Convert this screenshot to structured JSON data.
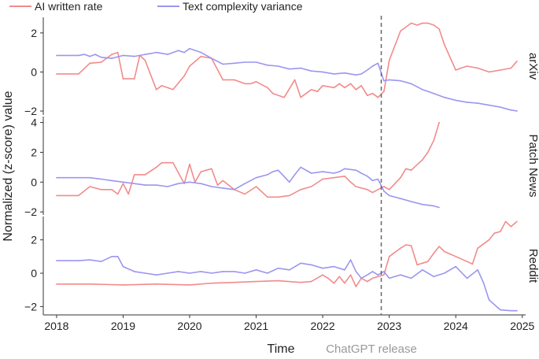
{
  "chart_data": {
    "type": "line",
    "xlabel": "Time",
    "ylabel": "Normalized (z-score) value",
    "xlim": [
      2017.8,
      2025.05
    ],
    "x_ticks": [
      2018,
      2019,
      2020,
      2021,
      2022,
      2023,
      2024,
      2025
    ],
    "x_tick_labels": [
      "2018",
      "2019",
      "2020",
      "2021",
      "2022",
      "2023",
      "2024",
      "2025"
    ],
    "legend": {
      "placement": "top-left",
      "entries": [
        {
          "label": "AI written rate",
          "color": "#f28b8b"
        },
        {
          "label": "Text complexity variance",
          "color": "#9b96f0"
        }
      ]
    },
    "annotation": {
      "text": "ChatGPT release",
      "x": 2022.88,
      "style": "dashed-vertical-line"
    },
    "panels": [
      {
        "label": "arXiv",
        "ylim": [
          -2.2,
          2.8
        ],
        "y_ticks": [
          -2,
          0,
          2
        ],
        "y_tick_labels": [
          "−2",
          "0",
          "2"
        ],
        "series": [
          {
            "key": "ai",
            "color": "#f28b8b",
            "x": [
              2018.0,
              2018.33,
              2018.5,
              2018.67,
              2018.83,
              2018.92,
              2019.0,
              2019.17,
              2019.25,
              2019.33,
              2019.5,
              2019.58,
              2019.75,
              2019.92,
              2020.0,
              2020.17,
              2020.33,
              2020.5,
              2020.67,
              2020.83,
              2020.92,
              2021.0,
              2021.17,
              2021.25,
              2021.42,
              2021.58,
              2021.67,
              2021.75,
              2021.83,
              2021.92,
              2022.0,
              2022.17,
              2022.25,
              2022.33,
              2022.42,
              2022.5,
              2022.58,
              2022.67,
              2022.75,
              2022.83,
              2022.92,
              2023.0,
              2023.17,
              2023.33,
              2023.42,
              2023.5,
              2023.58,
              2023.67,
              2023.75,
              2023.83,
              2024.0,
              2024.08,
              2024.17,
              2024.33,
              2024.5,
              2024.67,
              2024.83,
              2024.92
            ],
            "y": [
              -0.1,
              -0.1,
              0.45,
              0.5,
              0.9,
              1.0,
              -0.35,
              -0.35,
              0.85,
              0.6,
              -0.9,
              -0.7,
              -0.9,
              -0.2,
              0.3,
              0.8,
              0.7,
              -0.4,
              -0.4,
              -0.6,
              -0.6,
              -0.5,
              -0.8,
              -1.1,
              -1.3,
              -0.4,
              -1.3,
              -1.1,
              -0.9,
              -1.0,
              -0.7,
              -0.8,
              -0.6,
              -0.8,
              -0.6,
              -0.9,
              -0.7,
              -1.2,
              -1.1,
              -1.3,
              -1.0,
              0.6,
              2.1,
              2.5,
              2.4,
              2.5,
              2.5,
              2.4,
              2.2,
              1.4,
              0.1,
              0.2,
              0.3,
              0.2,
              0.0,
              0.1,
              0.2,
              0.55
            ]
          },
          {
            "key": "tcv",
            "color": "#9b96f0",
            "x": [
              2018.0,
              2018.33,
              2018.42,
              2018.5,
              2018.58,
              2018.67,
              2018.83,
              2019.0,
              2019.17,
              2019.33,
              2019.42,
              2019.5,
              2019.67,
              2019.83,
              2019.92,
              2020.0,
              2020.17,
              2020.33,
              2020.5,
              2020.67,
              2020.83,
              2021.0,
              2021.17,
              2021.33,
              2021.5,
              2021.67,
              2021.83,
              2022.0,
              2022.17,
              2022.33,
              2022.5,
              2022.58,
              2022.67,
              2022.75,
              2022.83,
              2022.92,
              2023.0,
              2023.17,
              2023.33,
              2023.5,
              2023.67,
              2023.83,
              2024.0,
              2024.17,
              2024.33,
              2024.5,
              2024.67,
              2024.83,
              2024.92
            ],
            "y": [
              0.85,
              0.85,
              0.9,
              0.8,
              0.9,
              0.75,
              0.7,
              0.85,
              0.8,
              0.9,
              0.95,
              1.0,
              0.9,
              1.1,
              1.0,
              1.2,
              1.0,
              0.7,
              0.4,
              0.45,
              0.5,
              0.5,
              0.35,
              0.3,
              0.15,
              0.2,
              0.05,
              0.0,
              -0.1,
              -0.05,
              -0.15,
              -0.1,
              0.1,
              0.3,
              0.45,
              -0.45,
              -0.4,
              -0.45,
              -0.6,
              -0.9,
              -1.1,
              -1.3,
              -1.45,
              -1.55,
              -1.6,
              -1.7,
              -1.8,
              -1.95,
              -2.0
            ]
          }
        ]
      },
      {
        "label": "Patch News",
        "ylim": [
          -2.2,
          4.4
        ],
        "y_ticks": [
          -2,
          0,
          2,
          4
        ],
        "y_tick_labels": [
          "−2",
          "0",
          "2",
          "4"
        ],
        "series": [
          {
            "key": "ai",
            "color": "#f28b8b",
            "x": [
              2018.0,
              2018.33,
              2018.5,
              2018.67,
              2018.83,
              2018.92,
              2019.0,
              2019.08,
              2019.17,
              2019.33,
              2019.5,
              2019.58,
              2019.67,
              2019.75,
              2019.92,
              2020.0,
              2020.08,
              2020.17,
              2020.33,
              2020.42,
              2020.5,
              2020.67,
              2020.83,
              2021.0,
              2021.17,
              2021.33,
              2021.5,
              2021.67,
              2021.83,
              2022.0,
              2022.17,
              2022.33,
              2022.42,
              2022.5,
              2022.67,
              2022.75,
              2022.83,
              2022.92,
              2023.0,
              2023.17,
              2023.25,
              2023.33,
              2023.5,
              2023.58,
              2023.67,
              2023.75
            ],
            "y": [
              -0.9,
              -0.9,
              -0.3,
              -0.5,
              -0.5,
              -0.8,
              -0.1,
              -0.8,
              0.5,
              0.5,
              1.0,
              1.3,
              1.3,
              1.3,
              -0.1,
              1.2,
              0.0,
              0.7,
              0.9,
              -0.2,
              0.1,
              -0.5,
              -0.8,
              -0.3,
              -1.0,
              -1.0,
              -0.9,
              -0.5,
              -0.3,
              0.2,
              0.3,
              0.4,
              0.0,
              -0.3,
              -0.5,
              -0.7,
              -0.5,
              -0.3,
              -0.5,
              0.3,
              0.9,
              0.8,
              1.5,
              2.0,
              2.8,
              4.0
            ]
          },
          {
            "key": "tcv",
            "color": "#9b96f0",
            "x": [
              2018.0,
              2018.33,
              2018.5,
              2018.67,
              2018.83,
              2019.0,
              2019.17,
              2019.33,
              2019.5,
              2019.67,
              2019.83,
              2020.0,
              2020.17,
              2020.33,
              2020.5,
              2020.67,
              2020.83,
              2021.0,
              2021.17,
              2021.25,
              2021.33,
              2021.5,
              2021.58,
              2021.67,
              2021.83,
              2022.0,
              2022.17,
              2022.25,
              2022.33,
              2022.5,
              2022.58,
              2022.67,
              2022.75,
              2022.83,
              2022.92,
              2023.0,
              2023.17,
              2023.33,
              2023.5,
              2023.67,
              2023.75
            ],
            "y": [
              0.3,
              0.3,
              0.3,
              0.2,
              0.1,
              0.0,
              -0.1,
              -0.2,
              -0.2,
              -0.3,
              -0.1,
              0.0,
              -0.1,
              -0.3,
              -0.4,
              -0.5,
              -0.1,
              0.3,
              0.5,
              0.7,
              0.8,
              0.0,
              0.5,
              1.0,
              0.6,
              0.7,
              0.6,
              0.7,
              0.9,
              0.8,
              0.6,
              0.4,
              0.1,
              0.2,
              -0.6,
              -0.9,
              -1.1,
              -1.3,
              -1.5,
              -1.6,
              -1.7
            ]
          }
        ]
      },
      {
        "label": "Reddit",
        "ylim": [
          -2.5,
          3.4
        ],
        "y_ticks": [
          -2,
          0,
          2
        ],
        "y_tick_labels": [
          "−2",
          "0",
          "2"
        ],
        "series": [
          {
            "key": "ai",
            "color": "#f28b8b",
            "x": [
              2018.0,
              2018.5,
              2019.0,
              2019.5,
              2020.0,
              2020.33,
              2020.67,
              2021.0,
              2021.33,
              2021.67,
              2021.83,
              2022.0,
              2022.08,
              2022.17,
              2022.25,
              2022.33,
              2022.42,
              2022.5,
              2022.58,
              2022.67,
              2022.75,
              2022.83,
              2022.92,
              2023.0,
              2023.17,
              2023.25,
              2023.33,
              2023.42,
              2023.5,
              2023.58,
              2023.67,
              2023.75,
              2023.83,
              2024.0,
              2024.17,
              2024.25,
              2024.33,
              2024.5,
              2024.58,
              2024.67,
              2024.75,
              2024.83,
              2024.92
            ],
            "y": [
              -0.65,
              -0.65,
              -0.7,
              -0.65,
              -0.7,
              -0.6,
              -0.55,
              -0.5,
              -0.45,
              -0.55,
              -0.5,
              -0.1,
              -0.3,
              -0.6,
              -0.2,
              -0.6,
              -0.1,
              -0.8,
              -0.3,
              -0.5,
              -0.3,
              -0.2,
              -0.1,
              1.0,
              1.5,
              1.7,
              1.65,
              0.5,
              0.6,
              0.7,
              1.2,
              1.6,
              1.3,
              1.0,
              0.7,
              0.55,
              1.5,
              2.0,
              2.4,
              2.5,
              3.1,
              2.8,
              3.1
            ]
          },
          {
            "key": "tcv",
            "color": "#9b96f0",
            "x": [
              2018.0,
              2018.33,
              2018.5,
              2018.67,
              2018.83,
              2018.92,
              2019.0,
              2019.17,
              2019.33,
              2019.5,
              2019.67,
              2019.83,
              2020.0,
              2020.17,
              2020.33,
              2020.5,
              2020.67,
              2020.83,
              2021.0,
              2021.17,
              2021.33,
              2021.5,
              2021.67,
              2021.83,
              2022.0,
              2022.17,
              2022.33,
              2022.42,
              2022.5,
              2022.58,
              2022.67,
              2022.75,
              2022.83,
              2022.92,
              2023.0,
              2023.17,
              2023.33,
              2023.5,
              2023.67,
              2023.83,
              2024.0,
              2024.17,
              2024.33,
              2024.42,
              2024.5,
              2024.67,
              2024.83,
              2024.92
            ],
            "y": [
              0.75,
              0.75,
              0.8,
              0.7,
              1.0,
              1.0,
              0.4,
              0.1,
              0.0,
              -0.1,
              0.0,
              0.1,
              0.0,
              0.1,
              0.0,
              0.1,
              0.1,
              0.0,
              0.2,
              0.0,
              0.3,
              0.2,
              0.6,
              0.5,
              0.3,
              0.4,
              0.2,
              0.8,
              0.1,
              -0.3,
              -0.1,
              0.1,
              -0.1,
              0.1,
              -0.3,
              -0.1,
              -0.3,
              0.2,
              -0.2,
              0.0,
              0.4,
              -0.3,
              0.2,
              -0.6,
              -1.6,
              -2.2,
              -2.25,
              -2.25
            ]
          }
        ]
      }
    ]
  }
}
